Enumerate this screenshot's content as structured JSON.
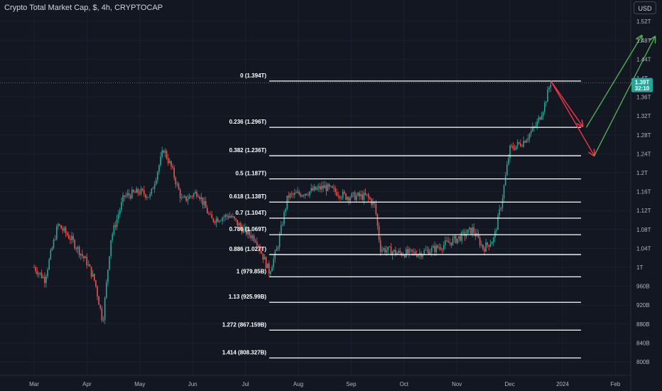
{
  "header": {
    "title": "Crypto Total Market Cap, $, 4h, CRYPTOCAP",
    "currency": "USD"
  },
  "colors": {
    "background": "#131722",
    "up": "#26a69a",
    "down": "#ef5350",
    "fib_line": "#ffffff",
    "arrow_red": "#f23645",
    "arrow_green": "#4caf50",
    "price_tag": "#26a69a"
  },
  "chart_data": {
    "type": "candlestick",
    "symbol": "Crypto Total Market Cap, $, 4h, CRYPTOCAP",
    "y_axis_unit": "USD",
    "y_scale": "linear",
    "y_range": [
      780,
      1540
    ],
    "y_ticks": [
      {
        "value": 800,
        "label": "800B"
      },
      {
        "value": 840,
        "label": "840B"
      },
      {
        "value": 880,
        "label": "880B"
      },
      {
        "value": 920,
        "label": "920B"
      },
      {
        "value": 960,
        "label": "960B"
      },
      {
        "value": 1000,
        "label": "1T"
      },
      {
        "value": 1040,
        "label": "1.04T"
      },
      {
        "value": 1080,
        "label": "1.08T"
      },
      {
        "value": 1120,
        "label": "1.12T"
      },
      {
        "value": 1160,
        "label": "1.16T"
      },
      {
        "value": 1200,
        "label": "1.2T"
      },
      {
        "value": 1240,
        "label": "1.24T"
      },
      {
        "value": 1280,
        "label": "1.28T"
      },
      {
        "value": 1320,
        "label": "1.32T"
      },
      {
        "value": 1360,
        "label": "1.36T"
      },
      {
        "value": 1400,
        "label": "1.4T"
      },
      {
        "value": 1440,
        "label": "1.44T"
      },
      {
        "value": 1480,
        "label": "1.48T"
      },
      {
        "value": 1520,
        "label": "1.52T"
      }
    ],
    "x_ticks": [
      "Mar",
      "Apr",
      "May",
      "Jun",
      "Jul",
      "Aug",
      "Sep",
      "Oct",
      "Nov",
      "Dec",
      "2024",
      "Feb"
    ],
    "current_price": {
      "label": "1.39T",
      "countdown": "32:10",
      "value": 1390
    },
    "price_path": [
      {
        "month": 0.0,
        "value": 1000
      },
      {
        "month": 0.2,
        "value": 975
      },
      {
        "month": 0.45,
        "value": 1090
      },
      {
        "month": 0.7,
        "value": 1060
      },
      {
        "month": 1.0,
        "value": 1010
      },
      {
        "month": 1.15,
        "value": 970
      },
      {
        "month": 1.3,
        "value": 885
      },
      {
        "month": 1.45,
        "value": 1060
      },
      {
        "month": 1.7,
        "value": 1150
      },
      {
        "month": 2.0,
        "value": 1160
      },
      {
        "month": 2.2,
        "value": 1150
      },
      {
        "month": 2.45,
        "value": 1250
      },
      {
        "month": 2.6,
        "value": 1210
      },
      {
        "month": 2.8,
        "value": 1140
      },
      {
        "month": 3.1,
        "value": 1160
      },
      {
        "month": 3.35,
        "value": 1100
      },
      {
        "month": 3.7,
        "value": 1110
      },
      {
        "month": 3.95,
        "value": 1080
      },
      {
        "month": 4.2,
        "value": 1060
      },
      {
        "month": 4.45,
        "value": 990
      },
      {
        "month": 4.6,
        "value": 1040
      },
      {
        "month": 4.8,
        "value": 1150
      },
      {
        "month": 5.2,
        "value": 1160
      },
      {
        "month": 5.5,
        "value": 1170
      },
      {
        "month": 5.9,
        "value": 1150
      },
      {
        "month": 6.3,
        "value": 1150
      },
      {
        "month": 6.45,
        "value": 1130
      },
      {
        "month": 6.55,
        "value": 1040
      },
      {
        "month": 6.9,
        "value": 1030
      },
      {
        "month": 7.3,
        "value": 1030
      },
      {
        "month": 7.6,
        "value": 1040
      },
      {
        "month": 8.0,
        "value": 1060
      },
      {
        "month": 8.3,
        "value": 1080
      },
      {
        "month": 8.5,
        "value": 1040
      },
      {
        "month": 8.7,
        "value": 1060
      },
      {
        "month": 8.85,
        "value": 1140
      },
      {
        "month": 9.0,
        "value": 1250
      },
      {
        "month": 9.25,
        "value": 1265
      },
      {
        "month": 9.5,
        "value": 1300
      },
      {
        "month": 9.65,
        "value": 1340
      },
      {
        "month": 9.78,
        "value": 1394
      }
    ],
    "fibonacci": {
      "x_start_month": 4.45,
      "x_end_month": 10.35,
      "levels": [
        {
          "label": "0 (1.394T)",
          "value": 1394
        },
        {
          "label": "0.236 (1.296T)",
          "value": 1296
        },
        {
          "label": "0.382 (1.236T)",
          "value": 1236
        },
        {
          "label": "0.5 (1.187T)",
          "value": 1187
        },
        {
          "label": "0.618 (1.138T)",
          "value": 1138
        },
        {
          "label": "0.7 (1.104T)",
          "value": 1104
        },
        {
          "label": "0.786 (1.069T)",
          "value": 1069
        },
        {
          "label": "0.886 (1.027T)",
          "value": 1027
        },
        {
          "label": "1 (979.85B)",
          "value": 979.85
        },
        {
          "label": "1.13 (925.99B)",
          "value": 925.99
        },
        {
          "label": "1.272 (867.159B)",
          "value": 867.159
        },
        {
          "label": "1.414 (808.327B)",
          "value": 808.327
        }
      ]
    },
    "projections": [
      {
        "color": "red",
        "points": [
          {
            "month": 9.78,
            "value": 1394
          },
          {
            "month": 10.38,
            "value": 1298
          }
        ]
      },
      {
        "color": "red",
        "points": [
          {
            "month": 9.78,
            "value": 1394
          },
          {
            "month": 10.6,
            "value": 1236
          }
        ]
      },
      {
        "color": "green",
        "points": [
          {
            "month": 10.45,
            "value": 1296
          },
          {
            "month": 11.5,
            "value": 1490
          }
        ]
      },
      {
        "color": "green",
        "points": [
          {
            "month": 10.6,
            "value": 1236
          },
          {
            "month": 11.75,
            "value": 1488
          }
        ]
      }
    ]
  }
}
